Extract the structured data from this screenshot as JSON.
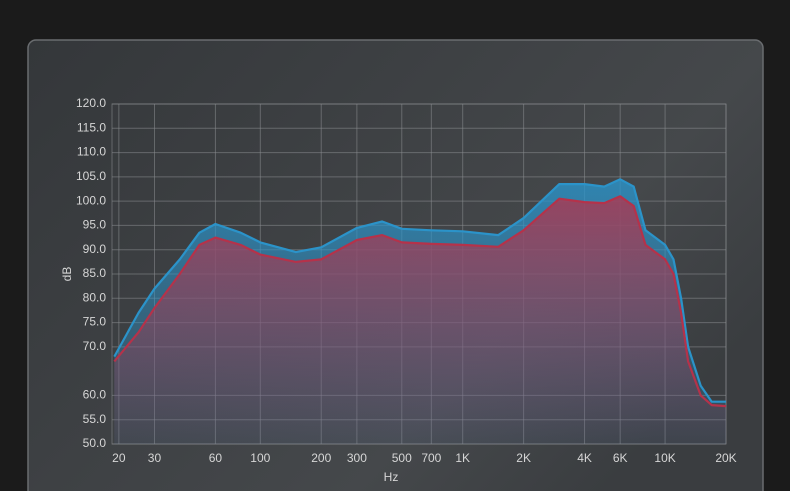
{
  "chart_data": {
    "type": "line",
    "x_label": "Hz",
    "y_label": "dB",
    "log_x": true,
    "grid": true,
    "xlim": [
      18.5,
      20000
    ],
    "ylim": [
      50,
      120
    ],
    "xticks": [
      20,
      30,
      60,
      100,
      200,
      300,
      500,
      700,
      {
        "value": 1000,
        "label": "1K"
      },
      {
        "value": 2000,
        "label": "2K"
      },
      {
        "value": 4000,
        "label": "4K"
      },
      {
        "value": 6000,
        "label": "6K"
      },
      {
        "value": 10000,
        "label": "10K"
      },
      {
        "value": 20000,
        "label": "20K"
      }
    ],
    "yticks": [
      {
        "value": 50,
        "label": "50.0"
      },
      {
        "value": 55,
        "label": "55.0"
      },
      {
        "value": 60,
        "label": "60.0"
      },
      {
        "value": 70,
        "label": "70.0"
      },
      {
        "value": 75,
        "label": "75.0"
      },
      {
        "value": 80,
        "label": "80.0"
      },
      {
        "value": 85,
        "label": "85.0"
      },
      {
        "value": 90,
        "label": "90.0"
      },
      {
        "value": 95,
        "label": "95.0"
      },
      {
        "value": 100,
        "label": "100.0"
      },
      {
        "value": 105,
        "label": "105.0"
      },
      {
        "value": 110,
        "label": "110.0"
      },
      {
        "value": 115,
        "label": "115.0"
      },
      {
        "value": 120,
        "label": "120.0"
      }
    ],
    "x": [
      19,
      25,
      30,
      40,
      50,
      60,
      80,
      100,
      150,
      200,
      300,
      400,
      500,
      700,
      1000,
      1500,
      2000,
      3000,
      4000,
      5000,
      6000,
      7000,
      8000,
      10000,
      11000,
      12000,
      13000,
      15000,
      17000,
      20000
    ],
    "series": [
      {
        "color": "#2b93c9",
        "values": [
          68,
          77,
          82,
          88,
          93.5,
          95.3,
          93.5,
          91.5,
          89.5,
          90.5,
          94.5,
          95.8,
          94.3,
          94,
          93.8,
          93,
          96.5,
          103.5,
          103.5,
          103,
          104.5,
          103,
          94,
          91,
          88,
          80,
          70,
          62,
          58.7,
          58.7
        ]
      },
      {
        "color": "#b5324a",
        "values": [
          67,
          73,
          78,
          85,
          91,
          92.5,
          91,
          89,
          87.5,
          88,
          92,
          93,
          91.5,
          91.2,
          91,
          90.6,
          94,
          100.5,
          99.8,
          99.6,
          101,
          99,
          91,
          88,
          85,
          77,
          67,
          60,
          58,
          57.8
        ]
      }
    ]
  }
}
